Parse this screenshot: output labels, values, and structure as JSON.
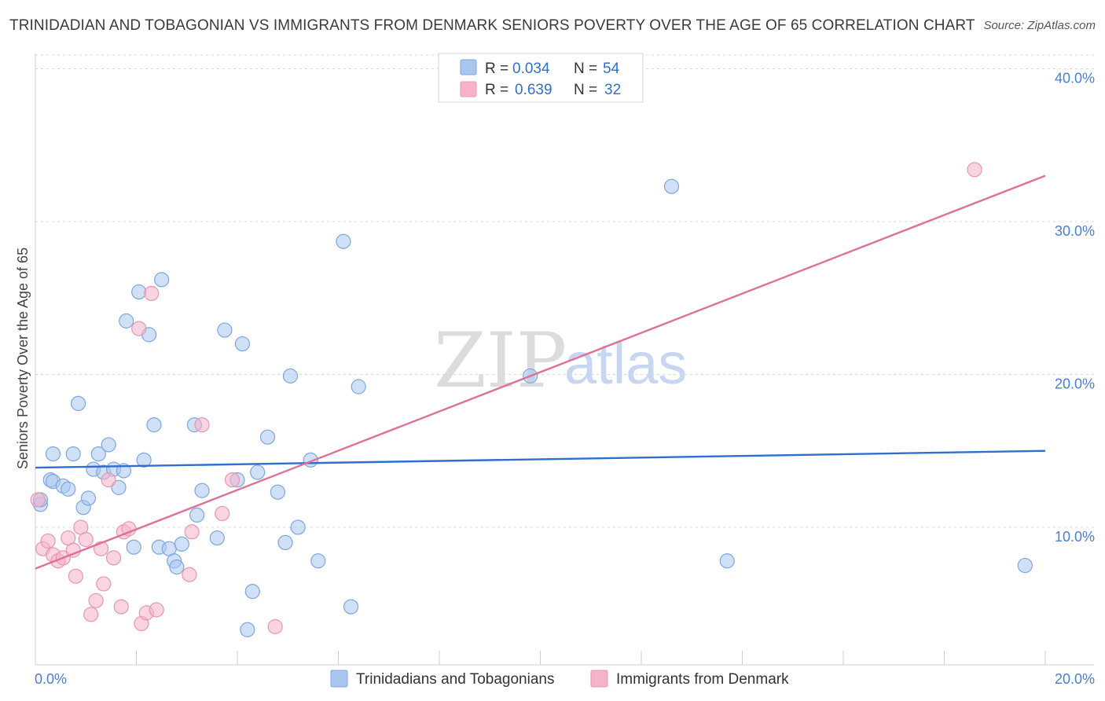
{
  "header": {
    "title": "TRINIDADIAN AND TOBAGONIAN VS IMMIGRANTS FROM DENMARK SENIORS POVERTY OVER THE AGE OF 65 CORRELATION CHART",
    "source": "Source: ZipAtlas.com"
  },
  "watermark": {
    "zip": "ZIP",
    "atlas": "atlas"
  },
  "legend_box": {
    "rows": [
      {
        "r_label": "R =",
        "r_value": "0.034",
        "n_label": "N =",
        "n_value": "54"
      },
      {
        "r_label": "R =",
        "r_value": "0.639",
        "n_label": "N =",
        "n_value": "32"
      }
    ]
  },
  "chart_data": {
    "type": "scatter",
    "title": "TRINIDADIAN AND TOBAGONIAN VS IMMIGRANTS FROM DENMARK SENIORS POVERTY OVER THE AGE OF 65 CORRELATION CHART",
    "xlabel": "",
    "ylabel": "Seniors Poverty Over the Age of 65",
    "xlim": [
      0,
      20
    ],
    "ylim": [
      1,
      41
    ],
    "x_tick_labels": [
      "0.0%",
      "20.0%"
    ],
    "y_ticks": [
      10,
      20,
      30,
      40
    ],
    "y_tick_labels": [
      "10.0%",
      "20.0%",
      "30.0%",
      "40.0%"
    ],
    "grid": true,
    "colors": {
      "series1_fill": "#a9c6ee",
      "series1_line": "#2f6fd0",
      "series2_fill": "#f6b3c8",
      "series2_line": "#e07098",
      "tick_label": "#4a7fd4",
      "grid": "#d8d8d8"
    },
    "series": [
      {
        "name": "Trinidadians and Tobagonians",
        "trend": {
          "x": [
            0,
            20
          ],
          "y": [
            13.9,
            15.0
          ]
        },
        "points": [
          [
            0.1,
            11.5
          ],
          [
            0.1,
            11.8
          ],
          [
            0.3,
            13.1
          ],
          [
            0.35,
            14.8
          ],
          [
            0.35,
            13.0
          ],
          [
            0.55,
            12.7
          ],
          [
            0.65,
            12.5
          ],
          [
            0.75,
            14.8
          ],
          [
            0.85,
            18.1
          ],
          [
            0.95,
            11.3
          ],
          [
            1.05,
            11.9
          ],
          [
            1.15,
            13.8
          ],
          [
            1.25,
            14.8
          ],
          [
            1.35,
            13.6
          ],
          [
            1.45,
            15.4
          ],
          [
            1.55,
            13.8
          ],
          [
            1.65,
            12.6
          ],
          [
            1.75,
            13.7
          ],
          [
            1.8,
            23.5
          ],
          [
            1.95,
            8.7
          ],
          [
            2.05,
            25.4
          ],
          [
            2.15,
            14.4
          ],
          [
            2.25,
            22.6
          ],
          [
            2.35,
            16.7
          ],
          [
            2.45,
            8.7
          ],
          [
            2.5,
            26.2
          ],
          [
            2.65,
            8.6
          ],
          [
            2.75,
            7.8
          ],
          [
            2.8,
            7.4
          ],
          [
            2.9,
            8.9
          ],
          [
            3.15,
            16.7
          ],
          [
            3.2,
            10.8
          ],
          [
            3.3,
            12.4
          ],
          [
            3.6,
            9.3
          ],
          [
            3.75,
            22.9
          ],
          [
            4.0,
            13.1
          ],
          [
            4.1,
            22.0
          ],
          [
            4.2,
            3.3
          ],
          [
            4.3,
            5.8
          ],
          [
            4.4,
            13.6
          ],
          [
            4.6,
            15.9
          ],
          [
            4.8,
            12.3
          ],
          [
            4.95,
            9.0
          ],
          [
            5.05,
            19.9
          ],
          [
            5.2,
            10.0
          ],
          [
            5.45,
            14.4
          ],
          [
            5.6,
            7.8
          ],
          [
            6.1,
            28.7
          ],
          [
            6.25,
            4.8
          ],
          [
            6.4,
            19.2
          ],
          [
            9.8,
            19.9
          ],
          [
            12.6,
            32.3
          ],
          [
            13.7,
            7.8
          ],
          [
            19.6,
            7.5
          ]
        ]
      },
      {
        "name": "Immigrants from Denmark",
        "trend": {
          "x": [
            0,
            20
          ],
          "y": [
            7.3,
            33.0
          ]
        },
        "points": [
          [
            0.05,
            11.8
          ],
          [
            0.15,
            8.6
          ],
          [
            0.25,
            9.1
          ],
          [
            0.35,
            8.2
          ],
          [
            0.45,
            7.8
          ],
          [
            0.55,
            8.0
          ],
          [
            0.65,
            9.3
          ],
          [
            0.75,
            8.5
          ],
          [
            0.8,
            6.8
          ],
          [
            0.9,
            10.0
          ],
          [
            1.0,
            9.2
          ],
          [
            1.1,
            4.3
          ],
          [
            1.2,
            5.2
          ],
          [
            1.3,
            8.6
          ],
          [
            1.35,
            6.3
          ],
          [
            1.45,
            13.1
          ],
          [
            1.55,
            8.0
          ],
          [
            1.7,
            4.8
          ],
          [
            1.75,
            9.7
          ],
          [
            1.85,
            9.9
          ],
          [
            2.05,
            23.0
          ],
          [
            2.1,
            3.7
          ],
          [
            2.2,
            4.4
          ],
          [
            2.3,
            25.3
          ],
          [
            2.4,
            4.6
          ],
          [
            3.05,
            6.9
          ],
          [
            3.1,
            9.7
          ],
          [
            3.3,
            16.7
          ],
          [
            3.9,
            13.1
          ],
          [
            3.7,
            10.9
          ],
          [
            4.75,
            3.5
          ],
          [
            18.6,
            33.4
          ]
        ]
      }
    ]
  },
  "bottom_legend": {
    "items": [
      {
        "label": "Trinidadians and Tobagonians"
      },
      {
        "label": "Immigrants from Denmark"
      }
    ]
  }
}
